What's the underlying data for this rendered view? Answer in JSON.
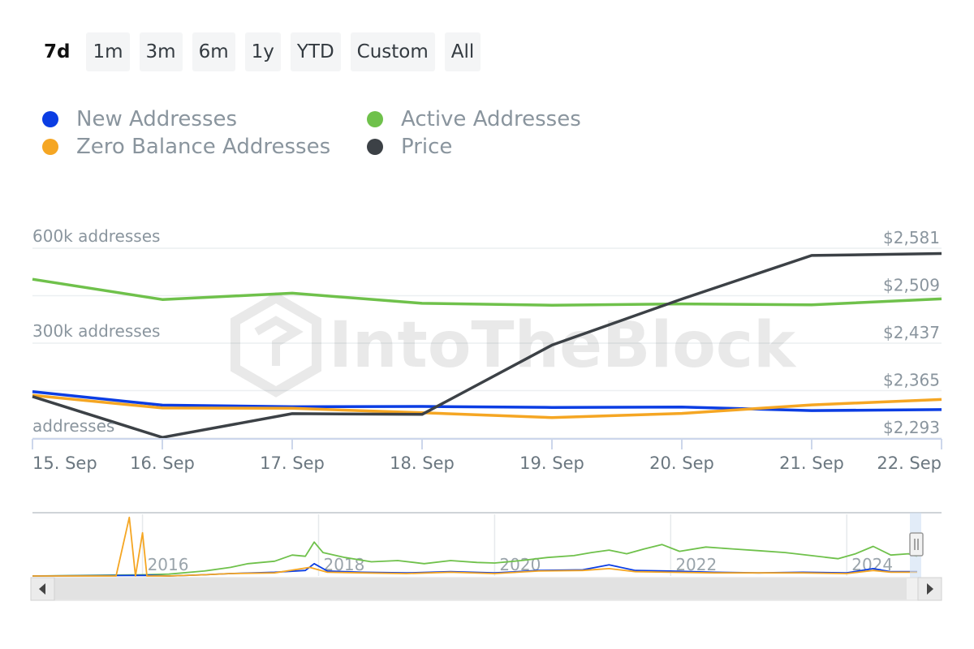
{
  "range_buttons": [
    {
      "label": "7d",
      "active": true
    },
    {
      "label": "1m",
      "active": false
    },
    {
      "label": "3m",
      "active": false
    },
    {
      "label": "6m",
      "active": false
    },
    {
      "label": "1y",
      "active": false
    },
    {
      "label": "YTD",
      "active": false
    },
    {
      "label": "Custom",
      "active": false
    },
    {
      "label": "All",
      "active": false
    }
  ],
  "legend": [
    {
      "label": "New Addresses",
      "color": "#0b3de3"
    },
    {
      "label": "Active Addresses",
      "color": "#6fc14b"
    },
    {
      "label": "Zero Balance Addresses",
      "color": "#f5a623"
    },
    {
      "label": "Price",
      "color": "#3c4146"
    }
  ],
  "watermark": "IntoTheBlock",
  "chart_data": {
    "type": "line",
    "x": [
      "15. Sep",
      "16. Sep",
      "17. Sep",
      "18. Sep",
      "19. Sep",
      "20. Sep",
      "21. Sep",
      "22. Sep"
    ],
    "left_axis": {
      "ticks": [
        0,
        300000,
        600000
      ],
      "tick_labels": [
        "addresses",
        "300k addresses",
        "600k addresses"
      ],
      "ylim": [
        0,
        600000
      ]
    },
    "right_axis": {
      "ticks": [
        2293,
        2365,
        2437,
        2509,
        2581
      ],
      "tick_labels": [
        "$2,293",
        "$2,365",
        "$2,437",
        "$2,509",
        "$2,581"
      ],
      "ylim": [
        2293,
        2581
      ]
    },
    "grid": true,
    "legend_position": "top-left",
    "series": [
      {
        "name": "Active Addresses",
        "axis": "left",
        "color": "#6fc14b",
        "values": [
          502000,
          438000,
          458000,
          426000,
          420000,
          424000,
          421000,
          440000
        ]
      },
      {
        "name": "New Addresses",
        "axis": "left",
        "color": "#0b3de3",
        "values": [
          147000,
          104000,
          99000,
          100000,
          97000,
          98000,
          87000,
          90000
        ]
      },
      {
        "name": "Zero Balance Addresses",
        "axis": "left",
        "color": "#f5a623",
        "values": [
          135000,
          95000,
          94000,
          80000,
          65000,
          78000,
          105000,
          122000
        ]
      },
      {
        "name": "Price",
        "axis": "right",
        "color": "#3c4146",
        "values": [
          2356,
          2294,
          2330,
          2329,
          2434,
          2504,
          2570,
          2573
        ]
      }
    ]
  },
  "navigator": {
    "year_labels": [
      "2016",
      "2018",
      "2020",
      "2022",
      "2024"
    ],
    "x_start": 2014.75,
    "x_end": 2024.8,
    "series": [
      {
        "name": "Active Addresses",
        "color": "#6fc14b",
        "points": [
          [
            2014.75,
            0
          ],
          [
            2016.0,
            2
          ],
          [
            2016.3,
            3
          ],
          [
            2016.7,
            8
          ],
          [
            2017.0,
            14
          ],
          [
            2017.2,
            20
          ],
          [
            2017.5,
            24
          ],
          [
            2017.7,
            34
          ],
          [
            2017.85,
            32
          ],
          [
            2017.95,
            55
          ],
          [
            2018.05,
            38
          ],
          [
            2018.3,
            30
          ],
          [
            2018.6,
            23
          ],
          [
            2018.9,
            25
          ],
          [
            2019.2,
            20
          ],
          [
            2019.5,
            25
          ],
          [
            2019.8,
            22
          ],
          [
            2020.0,
            21
          ],
          [
            2020.3,
            25
          ],
          [
            2020.6,
            30
          ],
          [
            2020.9,
            33
          ],
          [
            2021.1,
            38
          ],
          [
            2021.3,
            42
          ],
          [
            2021.5,
            36
          ],
          [
            2021.7,
            44
          ],
          [
            2021.9,
            51
          ],
          [
            2022.1,
            40
          ],
          [
            2022.4,
            47
          ],
          [
            2022.7,
            44
          ],
          [
            2023.0,
            41
          ],
          [
            2023.3,
            38
          ],
          [
            2023.6,
            33
          ],
          [
            2023.9,
            28
          ],
          [
            2024.1,
            36
          ],
          [
            2024.3,
            48
          ],
          [
            2024.5,
            34
          ],
          [
            2024.7,
            36
          ],
          [
            2024.8,
            32
          ]
        ]
      },
      {
        "name": "New Addresses",
        "color": "#0b3de3",
        "points": [
          [
            2014.75,
            0
          ],
          [
            2016.1,
            1
          ],
          [
            2016.3,
            0
          ],
          [
            2016.7,
            2
          ],
          [
            2017.0,
            4
          ],
          [
            2017.5,
            6
          ],
          [
            2017.85,
            9
          ],
          [
            2017.95,
            20
          ],
          [
            2018.1,
            8
          ],
          [
            2018.5,
            6
          ],
          [
            2019.0,
            5
          ],
          [
            2019.5,
            7
          ],
          [
            2020.0,
            5
          ],
          [
            2020.5,
            9
          ],
          [
            2021.0,
            10
          ],
          [
            2021.3,
            18
          ],
          [
            2021.6,
            9
          ],
          [
            2022.0,
            8
          ],
          [
            2022.5,
            6
          ],
          [
            2023.0,
            5
          ],
          [
            2023.5,
            6
          ],
          [
            2024.0,
            5
          ],
          [
            2024.3,
            12
          ],
          [
            2024.5,
            7
          ],
          [
            2024.8,
            7
          ]
        ]
      },
      {
        "name": "Zero Balance Addresses",
        "color": "#f5a623",
        "points": [
          [
            2014.75,
            0
          ],
          [
            2015.7,
            0
          ],
          [
            2015.85,
            95
          ],
          [
            2015.92,
            0
          ],
          [
            2016.0,
            70
          ],
          [
            2016.05,
            0
          ],
          [
            2016.3,
            0
          ],
          [
            2016.7,
            2
          ],
          [
            2017.0,
            4
          ],
          [
            2017.5,
            5
          ],
          [
            2017.9,
            14
          ],
          [
            2018.1,
            6
          ],
          [
            2018.5,
            5
          ],
          [
            2019.0,
            4
          ],
          [
            2019.5,
            6
          ],
          [
            2020.0,
            4
          ],
          [
            2020.5,
            8
          ],
          [
            2021.0,
            9
          ],
          [
            2021.3,
            12
          ],
          [
            2021.6,
            7
          ],
          [
            2022.0,
            6
          ],
          [
            2022.5,
            5
          ],
          [
            2023.0,
            5
          ],
          [
            2023.5,
            5
          ],
          [
            2024.0,
            4
          ],
          [
            2024.3,
            9
          ],
          [
            2024.5,
            6
          ],
          [
            2024.8,
            6
          ]
        ]
      }
    ]
  }
}
